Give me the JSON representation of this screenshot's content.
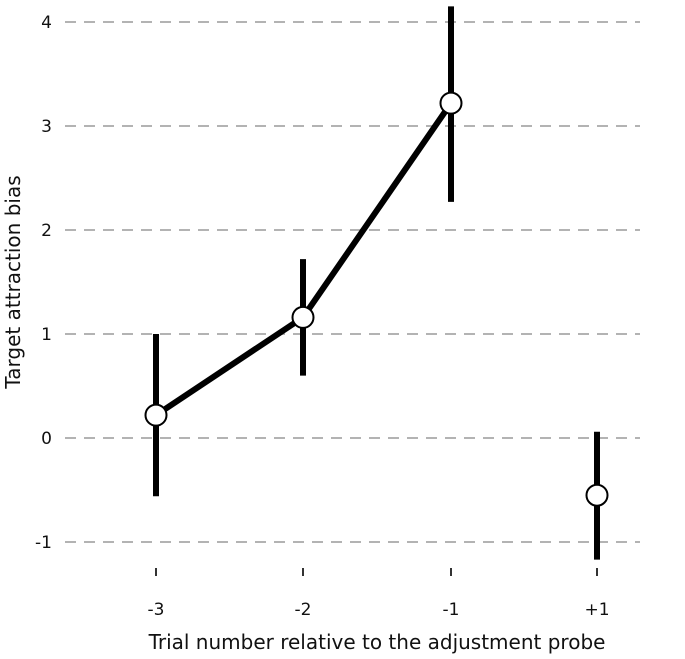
{
  "chart_data": {
    "type": "scatter",
    "xlabel": "Trial number relative to the adjustment probe",
    "ylabel": "Target attraction bias",
    "categories": [
      "-3",
      "-2",
      "-1",
      "+1"
    ],
    "y_ticks": [
      "-1",
      "0",
      "1",
      "2",
      "3",
      "4"
    ],
    "ylim": [
      -1.25,
      4.2
    ],
    "grid": "horizontal-dashed",
    "points": [
      {
        "x": "-3",
        "y": 0.22,
        "err_low": -0.56,
        "err_high": 1.0
      },
      {
        "x": "-2",
        "y": 1.16,
        "err_low": 0.6,
        "err_high": 1.72
      },
      {
        "x": "-1",
        "y": 3.22,
        "err_low": 2.27,
        "err_high": 4.15
      },
      {
        "x": "+1",
        "y": -0.55,
        "err_low": -1.17,
        "err_high": 0.06
      }
    ],
    "connected_points": [
      "-3",
      "-2",
      "-1"
    ],
    "colors": {
      "line": "#000000",
      "marker_fill": "#ffffff",
      "grid": "#b3b3b3"
    }
  }
}
